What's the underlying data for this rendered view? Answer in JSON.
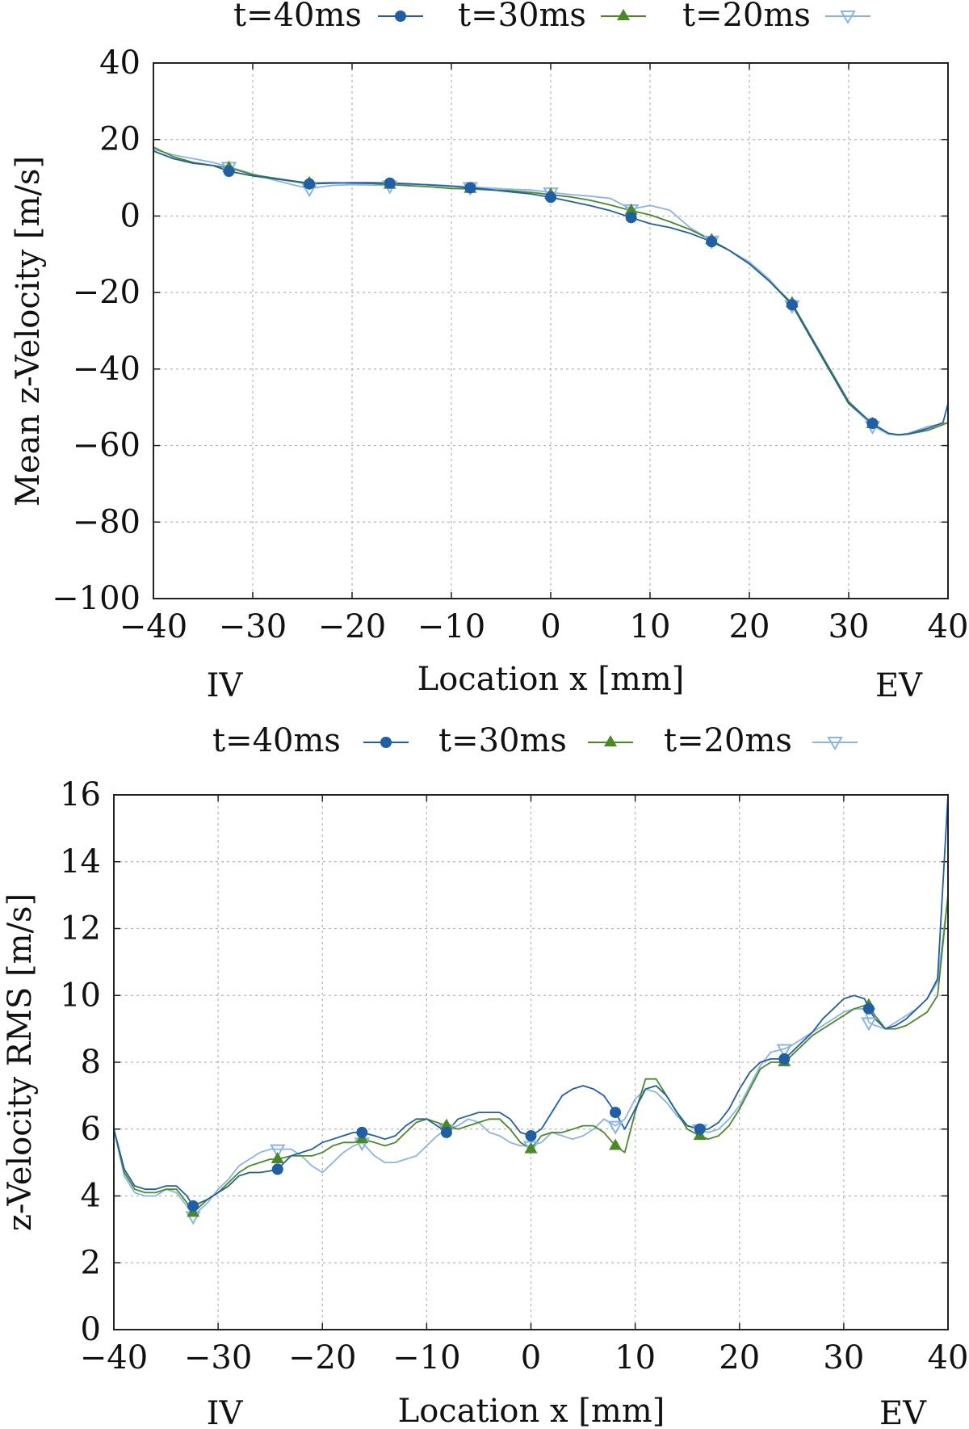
{
  "chart_data": [
    {
      "type": "line",
      "xlabel": "Location x [mm]",
      "ylabel": "Mean z-Velocity [m/s]",
      "xlim": [
        -40,
        40
      ],
      "ylim": [
        -100,
        40
      ],
      "xticks": [
        -40,
        -30,
        -20,
        -10,
        0,
        10,
        20,
        30,
        40
      ],
      "yticks": [
        -100,
        -80,
        -60,
        -40,
        -20,
        0,
        20,
        40
      ],
      "xtick_labels": [
        "−40",
        "−30",
        "−20",
        "−10",
        "0",
        "10",
        "20",
        "30",
        "40"
      ],
      "ytick_labels": [
        "−100",
        "−80",
        "−60",
        "−40",
        "−20",
        "0",
        "20",
        "40"
      ],
      "annotations": {
        "left": "IV",
        "right": "EV"
      },
      "grid": true,
      "legend_position": "top",
      "series": [
        {
          "name": "t=40ms",
          "color": "#1f5fa8",
          "marker": "circle",
          "x": [
            -40,
            -38,
            -36,
            -34,
            -32.4,
            -30,
            -28,
            -26,
            -24.3,
            -22,
            -20,
            -18,
            -16.2,
            -14,
            -12,
            -10,
            -8.1,
            -6,
            -4,
            -2,
            0,
            2,
            4,
            6,
            8.1,
            10,
            12,
            14,
            16.2,
            18,
            20,
            22,
            24.3,
            26,
            28,
            30,
            32.4,
            34,
            35,
            36,
            38,
            39.5,
            40
          ],
          "y": [
            17,
            15,
            13.8,
            13.2,
            11.7,
            10.5,
            9.8,
            9.1,
            8.4,
            8.6,
            8.7,
            8.7,
            8.6,
            8.4,
            8.1,
            7.8,
            7.4,
            6.9,
            6.3,
            5.8,
            4.9,
            3.8,
            2.7,
            1.4,
            -0.4,
            -2,
            -3,
            -4.5,
            -6.7,
            -9,
            -12.5,
            -17,
            -23.2,
            -31,
            -40,
            -49,
            -54.2,
            -56.8,
            -57.2,
            -57,
            -55.5,
            -54,
            -49
          ]
        },
        {
          "name": "t=30ms",
          "color": "#4a8a23",
          "marker": "triangle-up",
          "x": [
            -40,
            -38,
            -36,
            -34,
            -32.4,
            -30,
            -28,
            -26,
            -24.3,
            -22,
            -20,
            -18,
            -16.2,
            -14,
            -12,
            -10,
            -8.1,
            -6,
            -4,
            -2,
            0,
            2,
            4,
            6,
            8.1,
            10,
            12,
            14,
            16.2,
            18,
            20,
            22,
            24.3,
            26,
            28,
            30,
            32.4,
            34,
            35,
            36,
            38,
            40
          ],
          "y": [
            18,
            15.5,
            14,
            13.2,
            12.6,
            10.8,
            10,
            9.2,
            8.6,
            8.7,
            8.6,
            8.5,
            8.2,
            7.9,
            7.6,
            7.2,
            7.1,
            6.8,
            6.6,
            6.2,
            5.6,
            5,
            4.1,
            2.9,
            1.4,
            0.3,
            -1.5,
            -3.5,
            -6.3,
            -9,
            -12.5,
            -17,
            -22.8,
            -30.5,
            -39.5,
            -48.5,
            -54.4,
            -56.8,
            -57.2,
            -57,
            -56,
            -54
          ]
        },
        {
          "name": "t=20ms",
          "color": "#8ab4e8",
          "marker": "triangle-down",
          "x": [
            -40,
            -38,
            -36,
            -34,
            -32.4,
            -30,
            -28,
            -26,
            -24.3,
            -22,
            -20,
            -18,
            -16.2,
            -14,
            -12,
            -10,
            -8.1,
            -6,
            -4,
            -2,
            0,
            2,
            4,
            6,
            8.1,
            10,
            12,
            14,
            16.2,
            18,
            20,
            22,
            24.3,
            26,
            28,
            30,
            32.4,
            34,
            35,
            36,
            38,
            40
          ],
          "y": [
            17.5,
            16,
            15,
            14,
            12.9,
            11,
            9.5,
            8.2,
            7.2,
            8,
            8.2,
            8.1,
            8,
            8.3,
            8.2,
            7.9,
            7.6,
            7.3,
            7,
            6.8,
            6.2,
            5.6,
            5.2,
            4.6,
            1.8,
            2.8,
            1.5,
            -3,
            -6.4,
            -9,
            -12,
            -16.5,
            -23.3,
            -31,
            -40,
            -49,
            -54.8,
            -57,
            -57.2,
            -56.8,
            -55,
            -54
          ]
        }
      ],
      "marker_x": [
        -32.4,
        -24.3,
        -16.2,
        -8.1,
        0,
        8.1,
        16.2,
        24.3,
        32.4
      ]
    },
    {
      "type": "line",
      "xlabel": "Location x [mm]",
      "ylabel": "z-Velocity RMS [m/s]",
      "xlim": [
        -40,
        40
      ],
      "ylim": [
        0,
        16
      ],
      "xticks": [
        -40,
        -30,
        -20,
        -10,
        0,
        10,
        20,
        30,
        40
      ],
      "yticks": [
        0,
        2,
        4,
        6,
        8,
        10,
        12,
        14,
        16
      ],
      "xtick_labels": [
        "−40",
        "−30",
        "−20",
        "−10",
        "0",
        "10",
        "20",
        "30",
        "40"
      ],
      "ytick_labels": [
        "0",
        "2",
        "4",
        "6",
        "8",
        "10",
        "12",
        "14",
        "16"
      ],
      "annotations": {
        "left": "IV",
        "right": "EV"
      },
      "grid": true,
      "legend_position": "top",
      "series": [
        {
          "name": "t=40ms",
          "color": "#1f5fa8",
          "marker": "circle",
          "x": [
            -40,
            -39,
            -38,
            -37,
            -36,
            -35,
            -34,
            -33,
            -32.4,
            -31,
            -30,
            -29,
            -28,
            -27,
            -26,
            -25,
            -24.3,
            -23,
            -22,
            -21,
            -20,
            -19,
            -18,
            -17,
            -16.2,
            -15,
            -14,
            -13,
            -12,
            -11,
            -10,
            -9,
            -8.1,
            -7,
            -6,
            -5,
            -4,
            -3,
            -2,
            -1,
            0,
            1,
            2,
            3,
            4,
            5,
            6,
            7,
            8.1,
            9,
            10,
            11,
            12,
            13,
            14,
            15,
            16.2,
            17,
            18,
            19,
            20,
            21,
            22,
            23,
            24.3,
            25,
            26,
            27,
            28,
            29,
            30,
            31,
            32,
            32.4,
            33,
            34,
            35,
            36,
            37,
            38,
            39,
            40
          ],
          "y": [
            6,
            4.8,
            4.3,
            4.2,
            4.2,
            4.3,
            4.3,
            4.0,
            3.7,
            3.9,
            4.1,
            4.3,
            4.6,
            4.7,
            4.7,
            4.75,
            4.8,
            5.2,
            5.3,
            5.4,
            5.6,
            5.7,
            5.8,
            5.9,
            5.9,
            5.8,
            5.7,
            5.8,
            6.1,
            6.3,
            6.3,
            6.1,
            5.9,
            6.3,
            6.4,
            6.5,
            6.5,
            6.5,
            6.3,
            5.9,
            5.8,
            6.0,
            6.5,
            7.0,
            7.2,
            7.3,
            7.2,
            7.0,
            6.5,
            6.0,
            6.6,
            7.2,
            7.3,
            7.0,
            6.5,
            6.1,
            6.0,
            6.0,
            6.2,
            6.6,
            7.2,
            7.7,
            8.0,
            8.1,
            8.1,
            8.3,
            8.6,
            8.9,
            9.3,
            9.6,
            9.9,
            10.0,
            9.9,
            9.6,
            9.3,
            9.0,
            9.1,
            9.3,
            9.6,
            9.9,
            10.5,
            16
          ]
        },
        {
          "name": "t=30ms",
          "color": "#4a8a23",
          "marker": "triangle-up",
          "x": [
            -40,
            -39,
            -38,
            -37,
            -36,
            -35,
            -34,
            -33,
            -32.4,
            -31,
            -30,
            -29,
            -28,
            -27,
            -26,
            -25,
            -24.3,
            -23,
            -22,
            -21,
            -20,
            -19,
            -18,
            -17,
            -16.2,
            -15,
            -14,
            -13,
            -12,
            -11,
            -10,
            -9,
            -8.1,
            -7,
            -6,
            -5,
            -4,
            -3,
            -2,
            -1,
            0,
            1,
            2,
            3,
            4,
            5,
            6,
            7,
            8.1,
            9,
            10,
            11,
            12,
            13,
            14,
            15,
            16.2,
            17,
            18,
            19,
            20,
            21,
            22,
            23,
            24.3,
            25,
            26,
            27,
            28,
            29,
            30,
            31,
            32,
            32.4,
            33,
            34,
            35,
            36,
            37,
            38,
            39,
            40
          ],
          "y": [
            6,
            4.7,
            4.2,
            4.1,
            4.1,
            4.2,
            4.2,
            3.8,
            3.5,
            3.9,
            4.1,
            4.4,
            4.7,
            4.9,
            5.0,
            5.1,
            5.1,
            5.2,
            5.2,
            5.2,
            5.3,
            5.5,
            5.6,
            5.6,
            5.7,
            5.6,
            5.5,
            5.6,
            5.9,
            6.2,
            6.3,
            6.2,
            6.1,
            6.0,
            6.1,
            6.2,
            6.3,
            6.3,
            6.0,
            5.6,
            5.4,
            5.8,
            5.9,
            5.9,
            6.0,
            6.1,
            6.1,
            5.9,
            5.5,
            5.3,
            6.5,
            7.5,
            7.5,
            7.0,
            6.5,
            6.0,
            5.8,
            5.7,
            5.8,
            6.1,
            6.6,
            7.2,
            7.8,
            8.0,
            8.0,
            8.2,
            8.5,
            8.8,
            9.0,
            9.2,
            9.4,
            9.6,
            9.7,
            9.7,
            9.4,
            9.0,
            9.0,
            9.1,
            9.3,
            9.5,
            10.0,
            13
          ]
        },
        {
          "name": "t=20ms",
          "color": "#8ab4e8",
          "marker": "triangle-down",
          "x": [
            -40,
            -39,
            -38,
            -37,
            -36,
            -35,
            -34,
            -33,
            -32.4,
            -31,
            -30,
            -29,
            -28,
            -27,
            -26,
            -25,
            -24.3,
            -23,
            -22,
            -21,
            -20,
            -19,
            -18,
            -17,
            -16.2,
            -15,
            -14,
            -13,
            -12,
            -11,
            -10,
            -9,
            -8.1,
            -7,
            -6,
            -5,
            -4,
            -3,
            -2,
            -1,
            0,
            1,
            2,
            3,
            4,
            5,
            6,
            7,
            8.1,
            9,
            10,
            11,
            12,
            13,
            14,
            15,
            16.2,
            17,
            18,
            19,
            20,
            21,
            22,
            23,
            24.3,
            25,
            26,
            27,
            28,
            29,
            30,
            31,
            32,
            32.4,
            33,
            34,
            35,
            36,
            37,
            38,
            39,
            40
          ],
          "y": [
            6,
            4.6,
            4.1,
            4.0,
            4.0,
            4.2,
            4.1,
            3.7,
            3.4,
            3.8,
            4.2,
            4.5,
            4.9,
            5.1,
            5.3,
            5.4,
            5.4,
            5.4,
            5.2,
            4.9,
            4.7,
            5.0,
            5.3,
            5.5,
            5.6,
            5.2,
            5.0,
            5.0,
            5.1,
            5.2,
            5.5,
            5.8,
            6.0,
            6.1,
            6.3,
            6.2,
            5.9,
            5.8,
            5.6,
            5.5,
            5.5,
            5.6,
            5.9,
            5.8,
            5.7,
            5.8,
            6.0,
            6.3,
            6.1,
            6.3,
            6.9,
            7.2,
            7.1,
            6.8,
            6.4,
            6.1,
            6.0,
            5.9,
            6.0,
            6.3,
            6.7,
            7.3,
            7.9,
            8.3,
            8.4,
            8.5,
            8.7,
            8.9,
            9.1,
            9.3,
            9.5,
            9.6,
            9.6,
            9.2,
            9.1,
            9.0,
            9.2,
            9.4,
            9.6,
            9.9,
            10.4,
            13
          ]
        }
      ],
      "marker_x": [
        -32.4,
        -24.3,
        -16.2,
        -8.1,
        0,
        8.1,
        16.2,
        24.3,
        32.4
      ]
    }
  ]
}
